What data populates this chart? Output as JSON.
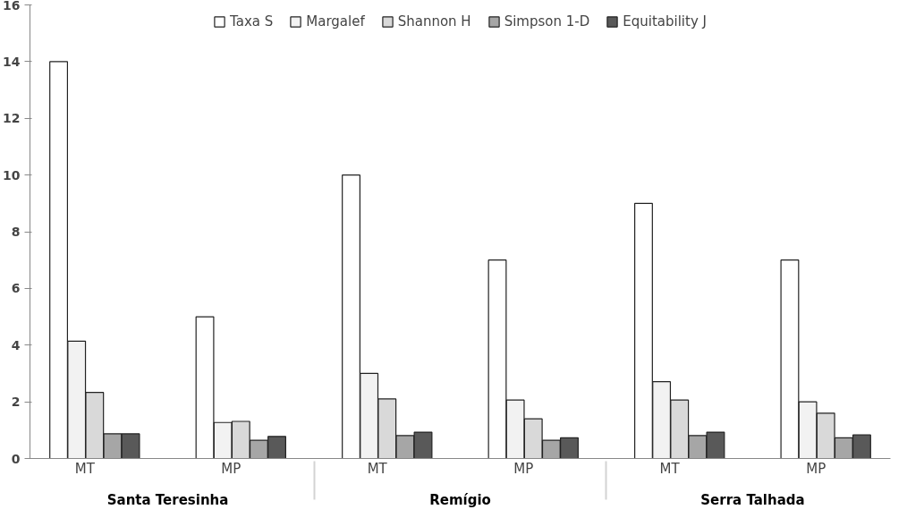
{
  "chart_data": {
    "type": "bar",
    "categories": [
      "MT",
      "MP",
      "MT",
      "MP",
      "MT",
      "MP"
    ],
    "annotations": [
      "Santa Teresinha",
      "Remígio",
      "Serra Talhada"
    ],
    "series": [
      {
        "name": "Taxa S",
        "color": "#ffffff",
        "values": [
          14,
          5,
          10,
          7,
          9,
          7
        ]
      },
      {
        "name": "Margalef",
        "color": "#f2f2f2",
        "values": [
          4.14,
          1.27,
          3.0,
          2.06,
          2.71,
          2.0
        ]
      },
      {
        "name": "Shannon H",
        "color": "#d9d9d9",
        "values": [
          2.33,
          1.31,
          2.1,
          1.4,
          2.06,
          1.6
        ]
      },
      {
        "name": "Simpson 1-D",
        "color": "#a6a6a6",
        "values": [
          0.87,
          0.64,
          0.81,
          0.64,
          0.81,
          0.73
        ]
      },
      {
        "name": "Equitability J",
        "color": "#595959",
        "values": [
          0.87,
          0.78,
          0.93,
          0.73,
          0.93,
          0.83
        ]
      }
    ],
    "ylim": [
      0,
      16
    ],
    "yticks": [
      0,
      2,
      4,
      6,
      8,
      10,
      12,
      14,
      16
    ],
    "grid": false,
    "legend": "top"
  }
}
